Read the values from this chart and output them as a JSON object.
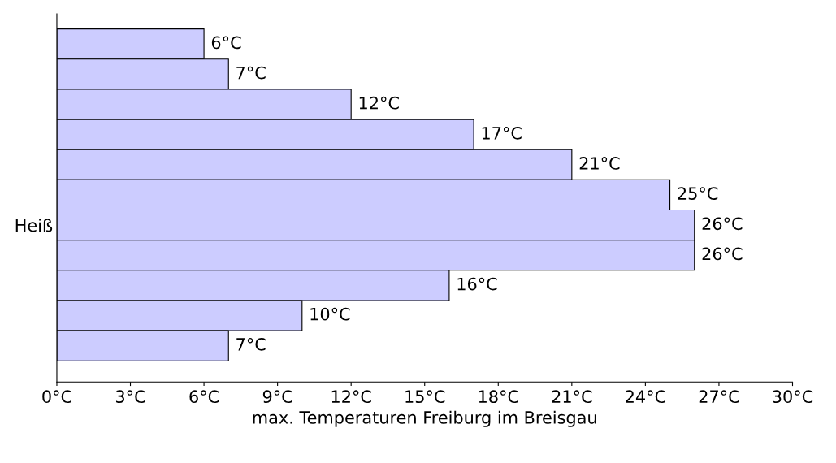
{
  "chart_data": {
    "type": "bar",
    "orientation": "horizontal",
    "xlabel": "max. Temperaturen Freiburg im Breisgau",
    "categories": [
      null,
      null,
      null,
      null,
      null,
      null,
      "Heiß",
      null,
      null,
      null,
      null
    ],
    "series": [
      {
        "color": "#ccccff",
        "values": [
          6,
          7,
          12,
          17,
          21,
          25,
          26,
          26,
          16,
          10,
          7
        ],
        "value_labels": [
          "6°C",
          "7°C",
          "12°C",
          "17°C",
          "21°C",
          "25°C",
          "26°C",
          "26°C",
          "16°C",
          "10°C",
          "7°C"
        ]
      }
    ],
    "xlim": [
      0,
      30
    ],
    "xticks": [
      {
        "value": 0,
        "label": "0°C"
      },
      {
        "value": 3,
        "label": "3°C"
      },
      {
        "value": 6,
        "label": "6°C"
      },
      {
        "value": 9,
        "label": "9°C"
      },
      {
        "value": 12,
        "label": "12°C"
      },
      {
        "value": 15,
        "label": "15°C"
      },
      {
        "value": 18,
        "label": "18°C"
      },
      {
        "value": 21,
        "label": "21°C"
      },
      {
        "value": 24,
        "label": "24°C"
      },
      {
        "value": 27,
        "label": "27°C"
      },
      {
        "value": 30,
        "label": "30°C"
      }
    ],
    "grid": false,
    "legend": false
  }
}
